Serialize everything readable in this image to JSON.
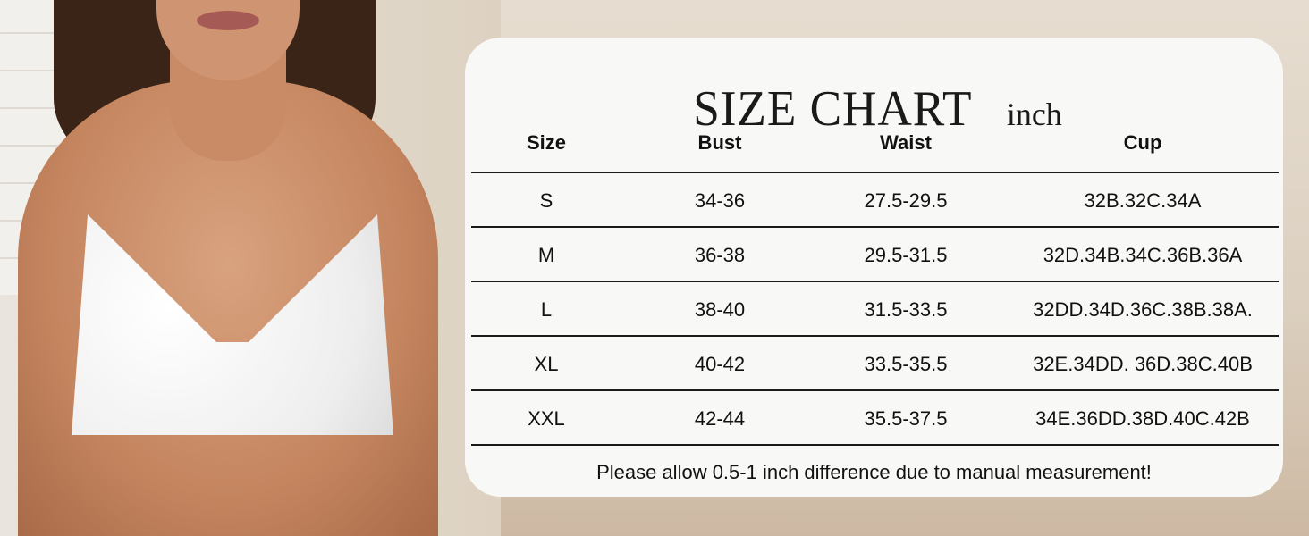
{
  "title": "SIZE CHART",
  "unit": "inch",
  "columns": [
    "Size",
    "Bust",
    "Waist",
    "Cup"
  ],
  "rows": [
    [
      "S",
      "34-36",
      "27.5-29.5",
      "32B.32C.34A"
    ],
    [
      "M",
      "36-38",
      "29.5-31.5",
      "32D.34B.34C.36B.36A"
    ],
    [
      "L",
      "38-40",
      "31.5-33.5",
      "32DD.34D.36C.38B.38A."
    ],
    [
      "XL",
      "40-42",
      "33.5-35.5",
      "32E.34DD. 36D.38C.40B"
    ],
    [
      "XXL",
      "42-44",
      "35.5-37.5",
      "34E.36DD.38D.40C.42B"
    ]
  ],
  "note": "Please allow 0.5-1 inch difference due to manual measurement!"
}
